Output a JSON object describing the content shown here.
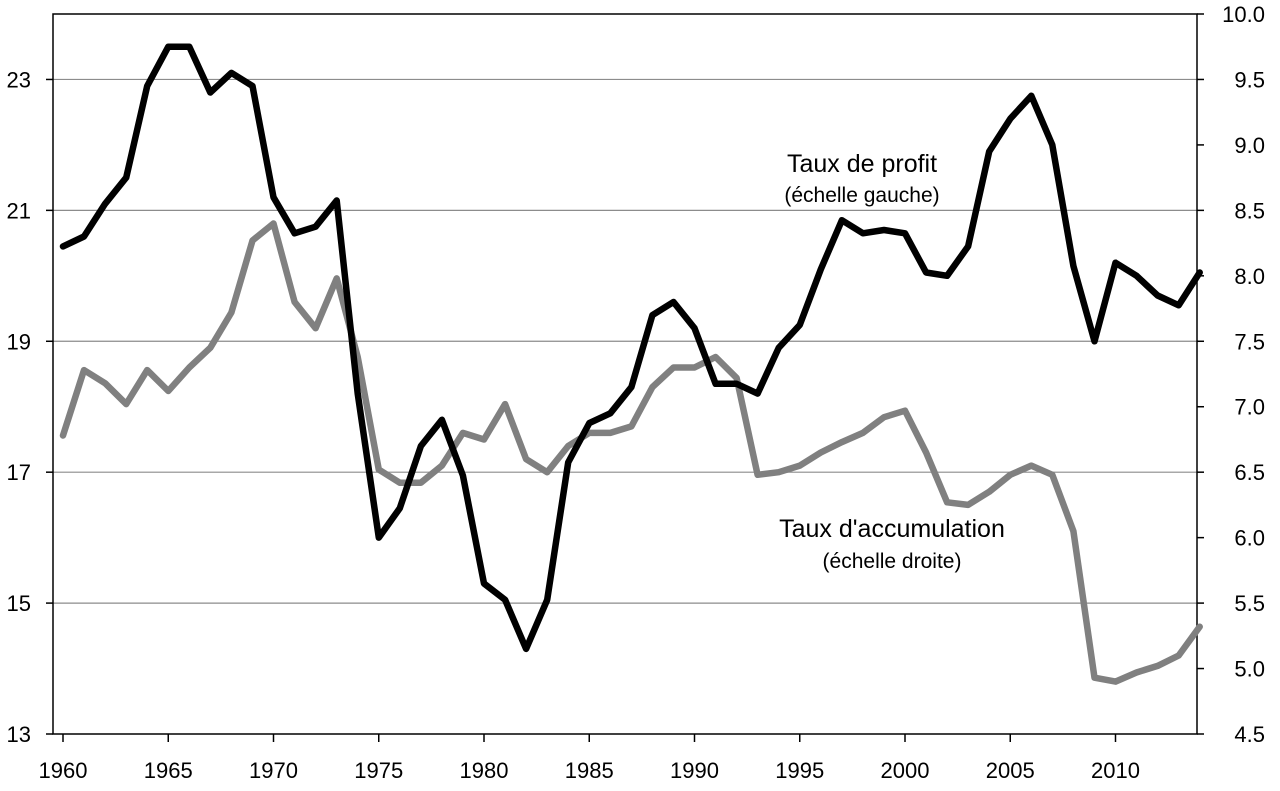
{
  "chart_data": {
    "type": "line",
    "title": "",
    "xlabel": "",
    "ylabel_left": "",
    "ylabel_right": "",
    "grid": true,
    "xlim": [
      1960,
      2014
    ],
    "xticks": [
      "1960",
      "1965",
      "1970",
      "1975",
      "1980",
      "1985",
      "1990",
      "1995",
      "2000",
      "2005",
      "2010"
    ],
    "ylim_left": [
      13,
      24
    ],
    "yticks_left": [
      "13",
      "15",
      "17",
      "19",
      "21",
      "23"
    ],
    "ylim_right": [
      4.5,
      10.0
    ],
    "yticks_right": [
      "4.5",
      "5.0",
      "5.5",
      "6.0",
      "6.5",
      "7.0",
      "7.5",
      "8.0",
      "8.5",
      "9.0",
      "9.5",
      "10.0"
    ],
    "series": [
      {
        "name": "Taux de profit",
        "name_sub": "(échelle gauche)",
        "axis": "left",
        "color": "#000000",
        "x": [
          1960,
          1961,
          1962,
          1963,
          1964,
          1965,
          1966,
          1967,
          1968,
          1969,
          1970,
          1971,
          1972,
          1973,
          1974,
          1975,
          1976,
          1977,
          1978,
          1979,
          1980,
          1981,
          1982,
          1983,
          1984,
          1985,
          1986,
          1987,
          1988,
          1989,
          1990,
          1991,
          1992,
          1993,
          1994,
          1995,
          1996,
          1997,
          1998,
          1999,
          2000,
          2001,
          2002,
          2003,
          2004,
          2005,
          2006,
          2007,
          2008,
          2009,
          2010,
          2011,
          2012,
          2013,
          2014
        ],
        "values": [
          20.45,
          20.6,
          21.1,
          21.5,
          22.9,
          23.5,
          23.5,
          22.8,
          23.1,
          22.9,
          21.2,
          20.65,
          20.75,
          21.15,
          18.2,
          16.0,
          16.45,
          17.4,
          17.8,
          16.95,
          15.3,
          15.05,
          14.3,
          15.05,
          17.15,
          17.75,
          17.9,
          18.3,
          19.4,
          19.6,
          19.2,
          18.35,
          18.35,
          18.2,
          18.9,
          19.25,
          20.1,
          20.85,
          20.65,
          20.7,
          20.65,
          20.05,
          20.0,
          20.45,
          21.9,
          22.4,
          22.75,
          22.0,
          20.15,
          19.0,
          20.2,
          20.0,
          19.7,
          19.55,
          20.05
        ]
      },
      {
        "name": "Taux d'accumulation",
        "name_sub": "(échelle droite)",
        "axis": "right",
        "color": "#808080",
        "x": [
          1960,
          1961,
          1962,
          1963,
          1964,
          1965,
          1966,
          1967,
          1968,
          1969,
          1970,
          1971,
          1972,
          1973,
          1974,
          1975,
          1976,
          1977,
          1978,
          1979,
          1980,
          1981,
          1982,
          1983,
          1984,
          1985,
          1986,
          1987,
          1988,
          1989,
          1990,
          1991,
          1992,
          1993,
          1994,
          1995,
          1996,
          1997,
          1998,
          1999,
          2000,
          2001,
          2002,
          2003,
          2004,
          2005,
          2006,
          2007,
          2008,
          2009,
          2010,
          2011,
          2012,
          2013,
          2014
        ],
        "values": [
          6.78,
          7.28,
          7.18,
          7.02,
          7.28,
          7.12,
          7.3,
          7.45,
          7.72,
          8.27,
          8.4,
          7.8,
          7.6,
          7.98,
          7.38,
          6.52,
          6.42,
          6.42,
          6.55,
          6.8,
          6.75,
          7.02,
          6.6,
          6.5,
          6.7,
          6.8,
          6.8,
          6.85,
          7.15,
          7.3,
          7.3,
          7.38,
          7.22,
          6.48,
          6.5,
          6.55,
          6.65,
          6.73,
          6.8,
          6.92,
          6.97,
          6.65,
          6.27,
          6.25,
          6.35,
          6.48,
          6.55,
          6.48,
          6.05,
          4.93,
          4.9,
          4.97,
          5.02,
          5.1,
          5.32
        ]
      }
    ]
  }
}
